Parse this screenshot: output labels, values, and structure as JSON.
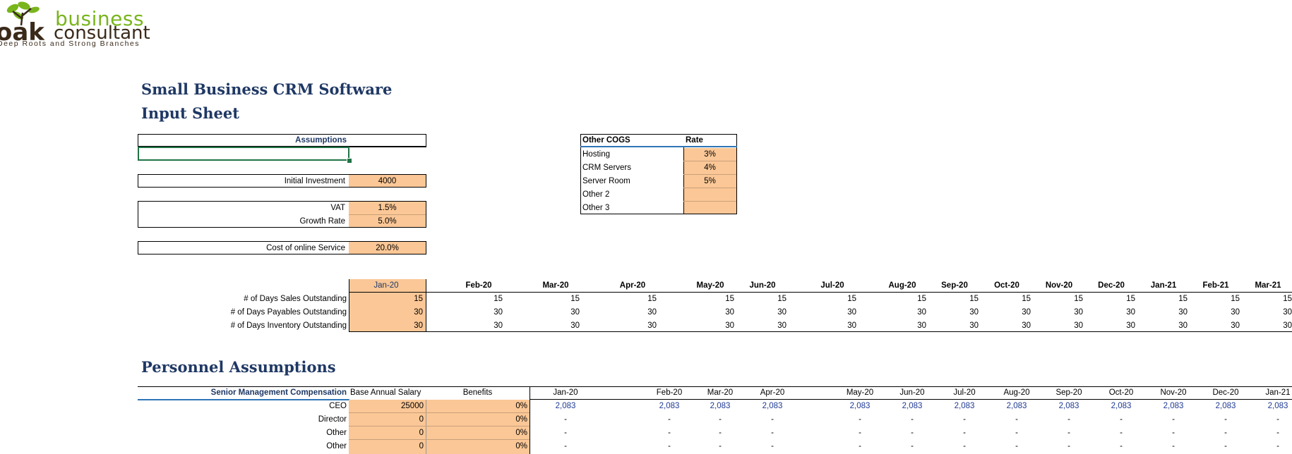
{
  "logo": {
    "word1": "business",
    "word2": "consultant",
    "oak": "oak",
    "tagline": "Deep Roots and Strong Branches",
    "leaf_color": "#79b51c",
    "trunk_color": "#3a2a1a"
  },
  "titles": {
    "main": "Small Business CRM Software",
    "sub": "Input Sheet",
    "personnel": "Personnel Assumptions"
  },
  "assumptions": {
    "header": "Assumptions",
    "initial_investment_label": "Initial Investment",
    "initial_investment": "4000",
    "vat_label": "VAT",
    "vat": "1.5%",
    "growth_label": "Growth Rate",
    "growth": "5.0%",
    "online_label": "Cost of online Service",
    "online": "20.0%"
  },
  "cogs": {
    "header_name": "Other COGS",
    "header_rate": "Rate",
    "rows": [
      {
        "name": "Hosting",
        "rate": "3%"
      },
      {
        "name": "CRM Servers",
        "rate": "4%"
      },
      {
        "name": "Server Room",
        "rate": "5%"
      },
      {
        "name": "Other 2",
        "rate": ""
      },
      {
        "name": "Other 3",
        "rate": ""
      }
    ]
  },
  "working_capital": {
    "months": [
      "Jan-20",
      "Feb-20",
      "Mar-20",
      "Apr-20",
      "May-20",
      "Jun-20",
      "Jul-20",
      "Aug-20",
      "Sep-20",
      "Oct-20",
      "Nov-20",
      "Dec-20",
      "Jan-21",
      "Feb-21",
      "Mar-21"
    ],
    "rows": [
      {
        "label": "# of Days Sales Outstanding",
        "value": "15"
      },
      {
        "label": "# of Days Payables Outstanding",
        "value": "30"
      },
      {
        "label": "# of Days Inventory Outstanding",
        "value": "30"
      }
    ]
  },
  "personnel": {
    "header_label": "Senior Management Compensation",
    "header_salary": "Base Annual Salary",
    "header_benefits": "Benefits",
    "months": [
      "Jan-20",
      "Feb-20",
      "Mar-20",
      "Apr-20",
      "May-20",
      "Jun-20",
      "Jul-20",
      "Aug-20",
      "Sep-20",
      "Oct-20",
      "Nov-20",
      "Dec-20",
      "Jan-21"
    ],
    "rows": [
      {
        "label": "CEO",
        "salary": "25000",
        "benefits": "0%",
        "monthly": "2,083"
      },
      {
        "label": "Director",
        "salary": "0",
        "benefits": "0%",
        "monthly": "-"
      },
      {
        "label": "Other",
        "salary": "0",
        "benefits": "0%",
        "monthly": "-"
      },
      {
        "label": "Other",
        "salary": "0",
        "benefits": "0%",
        "monthly": "-"
      }
    ]
  }
}
